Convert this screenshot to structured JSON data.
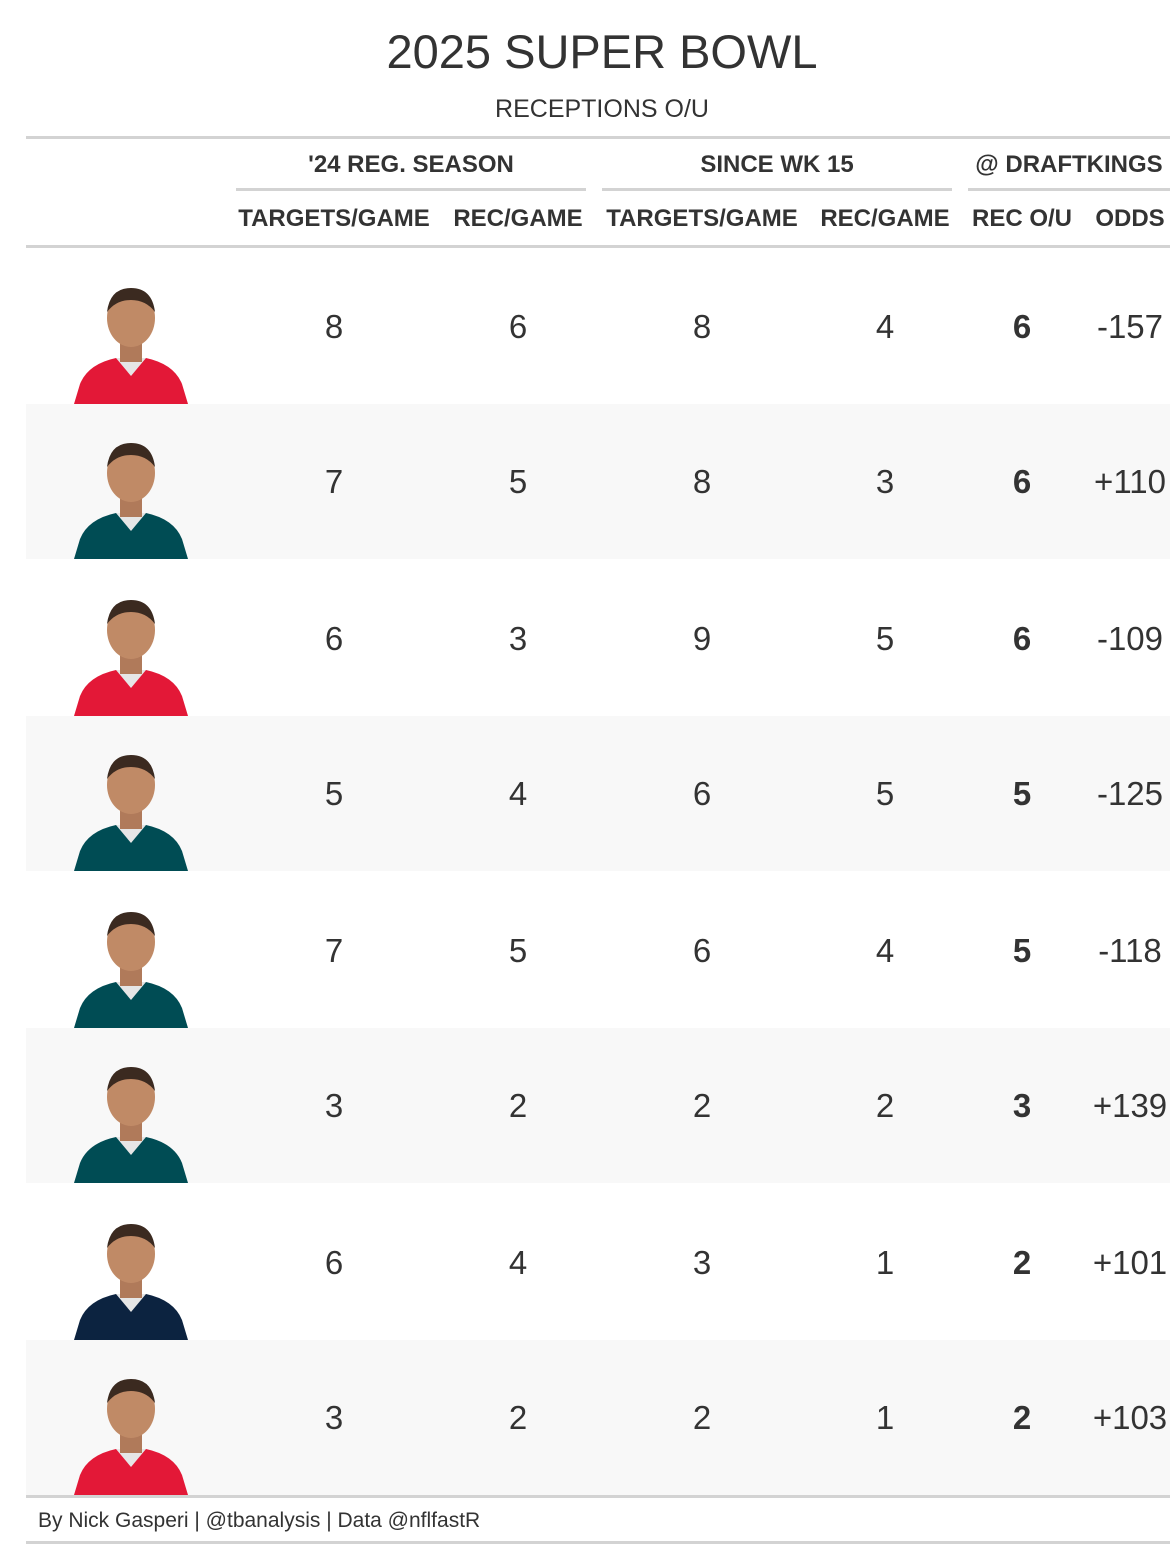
{
  "title": "2025 SUPER BOWL",
  "subtitle": "RECEPTIONS O/U",
  "spanners": [
    "'24 REG. SEASON",
    "SINCE WK 15",
    "@ DRAFTKINGS"
  ],
  "columns": [
    "TARGETS/GAME",
    "REC/GAME",
    "TARGETS/GAME",
    "REC/GAME",
    "REC O/U",
    "ODDS"
  ],
  "colors": {
    "chiefs_jersey": "#e31837",
    "eagles_jersey": "#004c54",
    "titans_jersey": "#0c2340",
    "row_shade": "#f8f8f8",
    "rule": "#d3d3d3",
    "text": "#333333"
  },
  "chart_data": {
    "type": "table",
    "title": "2025 SUPER BOWL",
    "subtitle": "RECEPTIONS O/U",
    "column_groups": [
      {
        "label": "'24 REG. SEASON",
        "columns": [
          "TARGETS/GAME",
          "REC/GAME"
        ]
      },
      {
        "label": "SINCE WK 15",
        "columns": [
          "TARGETS/GAME",
          "REC/GAME"
        ]
      },
      {
        "label": "@ DRAFTKINGS",
        "columns": [
          "REC O/U",
          "ODDS"
        ]
      }
    ],
    "rows": [
      {
        "team_color": "chiefs",
        "values": [
          "8",
          "6",
          "8",
          "4",
          "6",
          "-157"
        ]
      },
      {
        "team_color": "eagles",
        "values": [
          "7",
          "5",
          "8",
          "3",
          "6",
          "+110"
        ]
      },
      {
        "team_color": "chiefs",
        "values": [
          "6",
          "3",
          "9",
          "5",
          "6",
          "-109"
        ]
      },
      {
        "team_color": "eagles",
        "values": [
          "5",
          "4",
          "6",
          "5",
          "5",
          "-125"
        ]
      },
      {
        "team_color": "eagles",
        "values": [
          "7",
          "5",
          "6",
          "4",
          "5",
          "-118"
        ]
      },
      {
        "team_color": "eagles",
        "values": [
          "3",
          "2",
          "2",
          "2",
          "3",
          "+139"
        ]
      },
      {
        "team_color": "titans",
        "values": [
          "6",
          "4",
          "3",
          "1",
          "2",
          "+101"
        ]
      },
      {
        "team_color": "chiefs",
        "values": [
          "3",
          "2",
          "2",
          "1",
          "2",
          "+103"
        ]
      }
    ]
  },
  "footer": "By Nick Gasperi | @tbanalysis | Data @nflfastR"
}
